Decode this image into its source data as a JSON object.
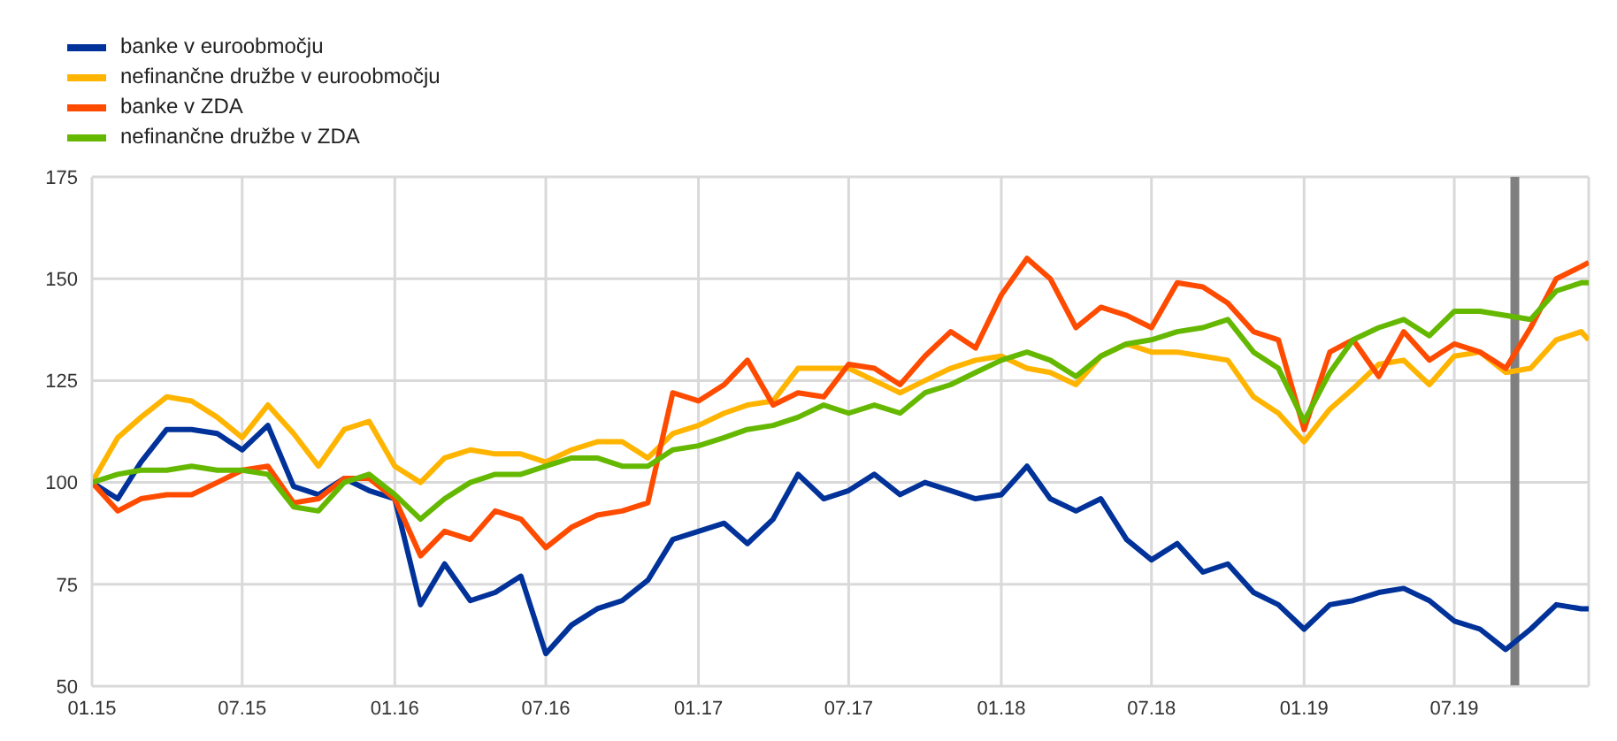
{
  "chart_data": {
    "type": "line",
    "x": [
      "2015-01-01",
      "2015-02-01",
      "2015-03-01",
      "2015-04-01",
      "2015-05-01",
      "2015-06-01",
      "2015-07-01",
      "2015-08-01",
      "2015-09-01",
      "2015-10-01",
      "2015-11-01",
      "2015-12-01",
      "2016-01-01",
      "2016-02-01",
      "2016-03-01",
      "2016-04-01",
      "2016-05-01",
      "2016-06-01",
      "2016-07-01",
      "2016-08-01",
      "2016-09-01",
      "2016-10-01",
      "2016-11-01",
      "2016-12-01",
      "2017-01-01",
      "2017-02-01",
      "2017-03-01",
      "2017-04-01",
      "2017-05-01",
      "2017-06-01",
      "2017-07-01",
      "2017-08-01",
      "2017-09-01",
      "2017-10-01",
      "2017-11-01",
      "2017-12-01",
      "2018-01-01",
      "2018-02-01",
      "2018-03-01",
      "2018-04-01",
      "2018-05-01",
      "2018-06-01",
      "2018-07-01",
      "2018-08-01",
      "2018-09-01",
      "2018-10-01",
      "2018-11-01",
      "2018-12-01",
      "2019-01-01",
      "2019-02-01",
      "2019-03-01",
      "2019-04-01",
      "2019-05-01",
      "2019-06-01",
      "2019-07-01",
      "2019-08-01",
      "2019-09-01",
      "2019-10-01",
      "2019-11-01",
      "2019-12-01",
      "2019-12-10"
    ],
    "series": [
      {
        "name": "banke v euroobmočju",
        "color": "#003299",
        "values": [
          100,
          96,
          105,
          113,
          113,
          112,
          108,
          114,
          99,
          97,
          101,
          98,
          96,
          70,
          80,
          71,
          73,
          77,
          58,
          65,
          69,
          71,
          76,
          86,
          88,
          90,
          85,
          91,
          102,
          96,
          98,
          102,
          97,
          100,
          98,
          96,
          97,
          104,
          96,
          93,
          96,
          86,
          81,
          85,
          78,
          80,
          73,
          70,
          64,
          70,
          71,
          73,
          74,
          71,
          66,
          64,
          59,
          64,
          70,
          69,
          69
        ]
      },
      {
        "name": "nefinančne družbe v euroobmočju",
        "color": "#ffb400",
        "values": [
          100,
          111,
          116,
          121,
          120,
          116,
          111,
          119,
          112,
          104,
          113,
          115,
          104,
          100,
          106,
          108,
          107,
          107,
          105,
          108,
          110,
          110,
          106,
          112,
          114,
          117,
          119,
          120,
          128,
          128,
          128,
          125,
          122,
          125,
          128,
          130,
          131,
          128,
          127,
          124,
          131,
          134,
          132,
          132,
          131,
          130,
          121,
          117,
          110,
          118,
          123,
          129,
          130,
          124,
          131,
          132,
          127,
          128,
          135,
          137,
          135
        ]
      },
      {
        "name": "banke v ZDA",
        "color": "#ff4b00",
        "values": [
          100,
          93,
          96,
          97,
          97,
          100,
          103,
          104,
          95,
          96,
          101,
          101,
          96,
          82,
          88,
          86,
          93,
          91,
          84,
          89,
          92,
          93,
          95,
          122,
          120,
          124,
          130,
          119,
          122,
          121,
          129,
          128,
          124,
          131,
          137,
          133,
          146,
          155,
          150,
          138,
          143,
          141,
          138,
          149,
          148,
          144,
          137,
          135,
          113,
          132,
          135,
          126,
          137,
          130,
          134,
          132,
          128,
          138,
          150,
          153,
          154
        ]
      },
      {
        "name": "nefinančne družbe v ZDA",
        "color": "#65b800",
        "values": [
          100,
          102,
          103,
          103,
          104,
          103,
          103,
          102,
          94,
          93,
          100,
          102,
          97,
          91,
          96,
          100,
          102,
          102,
          104,
          106,
          106,
          104,
          104,
          108,
          109,
          111,
          113,
          114,
          116,
          119,
          117,
          119,
          117,
          122,
          124,
          127,
          130,
          132,
          130,
          126,
          131,
          134,
          135,
          137,
          138,
          140,
          132,
          128,
          115,
          127,
          135,
          138,
          140,
          136,
          142,
          142,
          141,
          140,
          147,
          149,
          149
        ]
      }
    ],
    "xlim": [
      "2015-01-01",
      "2019-12-10"
    ],
    "xticks": [
      {
        "value": "2015-01-01",
        "label": "01.15"
      },
      {
        "value": "2015-07-01",
        "label": "07.15"
      },
      {
        "value": "2016-01-01",
        "label": "01.16"
      },
      {
        "value": "2016-07-01",
        "label": "07.16"
      },
      {
        "value": "2017-01-01",
        "label": "01.17"
      },
      {
        "value": "2017-07-01",
        "label": "07.17"
      },
      {
        "value": "2018-01-01",
        "label": "01.18"
      },
      {
        "value": "2018-07-01",
        "label": "07.18"
      },
      {
        "value": "2019-01-01",
        "label": "01.19"
      },
      {
        "value": "2019-07-01",
        "label": "07.19"
      }
    ],
    "ylim": [
      50,
      175
    ],
    "yticks": [
      50,
      75,
      100,
      125,
      150,
      175
    ],
    "ref_lines": [
      {
        "axis": "x",
        "value": "2019-09-12",
        "color": "#7f7f7f"
      }
    ],
    "grid": true,
    "legend": "top left",
    "marker": "none",
    "line_style": "solid"
  }
}
